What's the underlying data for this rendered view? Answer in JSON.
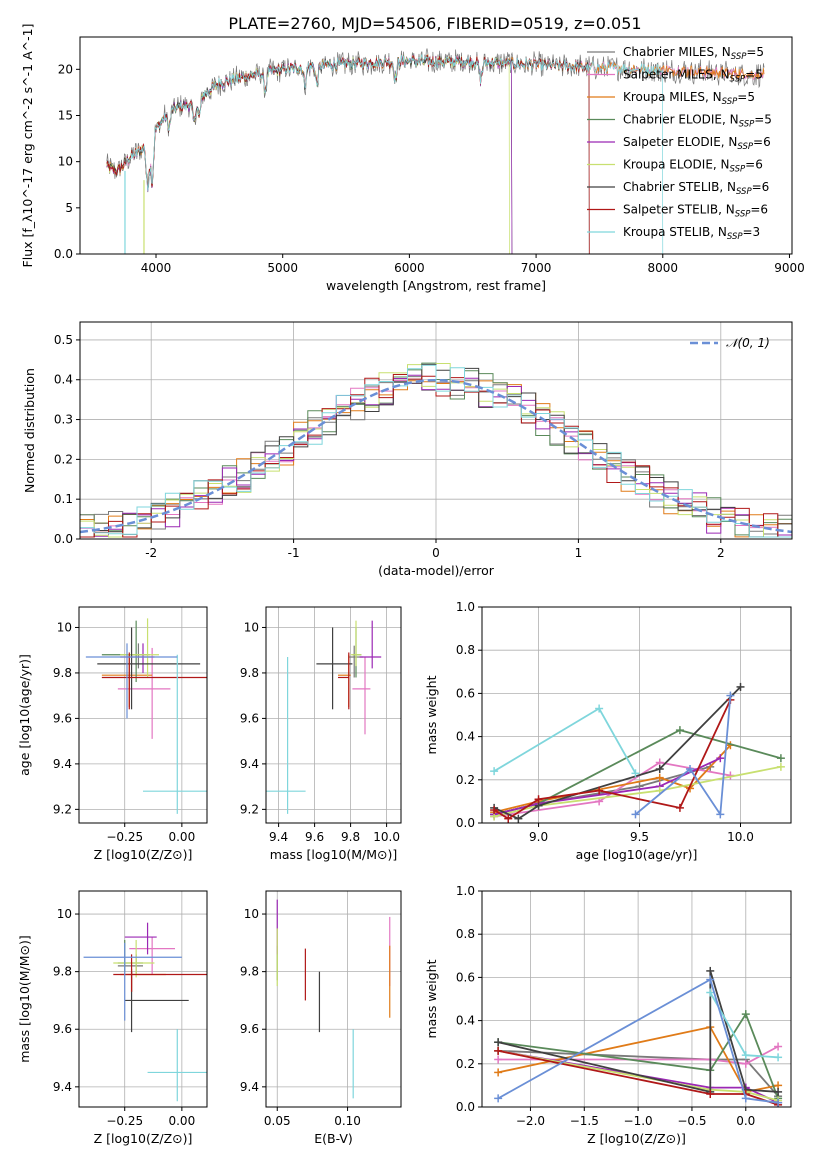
{
  "figure_title": "PLATE=2760, MJD=54506, FIBERID=0519, z=0.051",
  "colors": {
    "Chabrier MILES": "#7a7a7a",
    "Salpeter MILES": "#e377c2",
    "Kroupa MILES": "#e07b18",
    "Chabrier ELODIE": "#5a8a5a",
    "Salpeter ELODIE": "#9b28b4",
    "Kroupa ELODIE": "#c8e070",
    "Chabrier STELIB": "#404040",
    "Salpeter STELIB": "#b01818",
    "Kroupa STELIB": "#7fd6dc",
    "normal": "#6a8fd6"
  },
  "chart_data": [
    {
      "id": "spectrum",
      "type": "line",
      "xlabel": "wavelength [Angstrom, rest frame]",
      "ylabel": "Flux [f_λ10^-17 erg cm^-2 s^-1 A^-1]",
      "xlim": [
        3400,
        9020
      ],
      "ylim": [
        0,
        23.5
      ],
      "xticks": [
        4000,
        5000,
        6000,
        7000,
        8000,
        9000
      ],
      "yticks": [
        0,
        5,
        10,
        15,
        20
      ],
      "legend_position": "right",
      "legend": [
        {
          "name": "Chabrier MILES",
          "nssp": "5"
        },
        {
          "name": "Salpeter MILES",
          "nssp": "5"
        },
        {
          "name": "Kroupa MILES",
          "nssp": "5"
        },
        {
          "name": "Chabrier ELODIE",
          "nssp": "5"
        },
        {
          "name": "Salpeter ELODIE",
          "nssp": "6"
        },
        {
          "name": "Kroupa ELODIE",
          "nssp": "6"
        },
        {
          "name": "Chabrier STELIB",
          "nssp": "6"
        },
        {
          "name": "Salpeter STELIB",
          "nssp": "6"
        },
        {
          "name": "Kroupa STELIB",
          "nssp": "3"
        }
      ],
      "continuum_x": [
        3600,
        3700,
        3800,
        3900,
        4000,
        4100,
        4200,
        4300,
        4400,
        4500,
        4700,
        5000,
        5200,
        5500,
        6000,
        6500,
        7000,
        7500,
        8000,
        8500,
        8800
      ],
      "continuum_y": [
        9.5,
        9.0,
        10.5,
        11.5,
        13.5,
        15.5,
        16.0,
        16.2,
        17.5,
        18.5,
        19.2,
        20.0,
        20.3,
        20.6,
        20.9,
        20.8,
        20.5,
        20.2,
        19.9,
        19.6,
        19.4
      ],
      "cutoffs": {
        "Kroupa STELIB": [
          3760,
          8000
        ],
        "Salpeter STELIB": [
          3610,
          7420
        ],
        "Kroupa ELODIE": [
          3610,
          6790
        ],
        "Chabrier ELODIE": [
          3610,
          6810
        ],
        "Salpeter ELODIE": [
          3610,
          6810
        ],
        "Chabrier STELIB": [
          3610,
          7420
        ]
      }
    },
    {
      "id": "residuals",
      "type": "line",
      "xlabel": "(data-model)/error",
      "ylabel": "Normed distribution",
      "xlim": [
        -2.5,
        2.5
      ],
      "ylim": [
        0,
        0.545
      ],
      "xticks": [
        -2,
        -1,
        0,
        1,
        2
      ],
      "yticks": [
        0.0,
        0.1,
        0.2,
        0.3,
        0.4,
        0.5
      ],
      "legend": [
        "𝒩(0, 1)"
      ],
      "legend_position": "top-right",
      "bin_width": 0.1
    },
    {
      "id": "age_vs_Z",
      "type": "scatter",
      "xlabel": "Z [log10(Z/Z⊙)]",
      "ylabel": "age  [log10(age/yr)]",
      "xlim": [
        -0.45,
        0.11
      ],
      "ylim": [
        9.14,
        10.09
      ],
      "xticks": [
        -0.25,
        0.0
      ],
      "xticklabels": [
        "−0.25",
        "0.00"
      ],
      "yticks": [
        9.2,
        9.4,
        9.6,
        9.8,
        10.0
      ],
      "points": [
        {
          "m": "Chabrier MILES",
          "x": -0.19,
          "y": 9.88,
          "xerr": [
            0.05,
            0.05
          ],
          "yerr": [
            0.06,
            0.05
          ]
        },
        {
          "m": "Salpeter MILES",
          "x": -0.13,
          "y": 9.73,
          "xerr": [
            0.15,
            0.08
          ],
          "yerr": [
            0.22,
            0.18
          ]
        },
        {
          "m": "Kroupa MILES",
          "x": -0.23,
          "y": 9.79,
          "xerr": [
            0.12,
            0.1
          ],
          "yerr": [
            0.14,
            0.09
          ]
        },
        {
          "m": "Chabrier ELODIE",
          "x": -0.2,
          "y": 9.88,
          "xerr": [
            0.15,
            0.05
          ],
          "yerr": [
            0.12,
            0.15
          ]
        },
        {
          "m": "Salpeter ELODIE",
          "x": -0.17,
          "y": 9.87,
          "xerr": [
            0.1,
            0.05
          ],
          "yerr": [
            0.07,
            0.06
          ]
        },
        {
          "m": "Kroupa ELODIE",
          "x": -0.15,
          "y": 9.88,
          "xerr": [
            0.12,
            0.05
          ],
          "yerr": [
            0.1,
            0.16
          ]
        },
        {
          "m": "Chabrier STELIB",
          "x": -0.22,
          "y": 9.84,
          "xerr": [
            0.15,
            0.3
          ],
          "yerr": [
            0.2,
            0.16
          ]
        },
        {
          "m": "Salpeter STELIB",
          "x": -0.23,
          "y": 9.78,
          "xerr": [
            0.12,
            0.37
          ],
          "yerr": [
            0.14,
            0.11
          ]
        },
        {
          "m": "Kroupa STELIB",
          "x": -0.02,
          "y": 9.28,
          "xerr": [
            0.15,
            0.15
          ],
          "yerr": [
            0.1,
            0.6
          ]
        },
        {
          "m": "normal",
          "x": -0.24,
          "y": 9.87,
          "xerr": [
            0.18,
            0.22
          ],
          "yerr": [
            0.27,
            0.06
          ]
        }
      ]
    },
    {
      "id": "age_vs_mass",
      "type": "scatter",
      "xlabel": "mass [log10(M/M⊙)]",
      "ylabel": "",
      "xlim": [
        9.33,
        10.08
      ],
      "ylim": [
        9.14,
        10.09
      ],
      "xticks": [
        9.4,
        9.6,
        9.8,
        10.0
      ],
      "xticklabels": [
        "9.4",
        "9.6",
        "9.8",
        "10.0"
      ],
      "yticks": [
        9.2,
        9.4,
        9.6,
        9.8,
        10.0
      ],
      "points": [
        {
          "m": "Chabrier MILES",
          "x": 9.82,
          "y": 9.87,
          "xerr": [
            0.03,
            0.05
          ],
          "yerr": [
            0.09,
            0.05
          ]
        },
        {
          "m": "Salpeter MILES",
          "x": 9.88,
          "y": 9.73,
          "xerr": [
            0.07,
            0.03
          ],
          "yerr": [
            0.2,
            0.14
          ]
        },
        {
          "m": "Kroupa MILES",
          "x": 9.79,
          "y": 9.79,
          "xerr": [
            0.06,
            0.01
          ],
          "yerr": [
            0.14,
            0.09
          ]
        },
        {
          "m": "Chabrier ELODIE",
          "x": 9.83,
          "y": 9.88,
          "xerr": [
            0.02,
            0.03
          ],
          "yerr": [
            0.1,
            0.12
          ]
        },
        {
          "m": "Salpeter ELODIE",
          "x": 9.92,
          "y": 9.87,
          "xerr": [
            0.07,
            0.05
          ],
          "yerr": [
            0.05,
            0.16
          ]
        },
        {
          "m": "Kroupa ELODIE",
          "x": 9.83,
          "y": 9.88,
          "xerr": [
            0.03,
            0.03
          ],
          "yerr": [
            0.05,
            0.15
          ]
        },
        {
          "m": "Chabrier STELIB",
          "x": 9.7,
          "y": 9.84,
          "xerr": [
            0.09,
            0.11
          ],
          "yerr": [
            0.2,
            0.16
          ]
        },
        {
          "m": "Salpeter STELIB",
          "x": 9.79,
          "y": 9.78,
          "xerr": [
            0.06,
            0.0
          ],
          "yerr": [
            0.14,
            0.11
          ]
        },
        {
          "m": "Kroupa STELIB",
          "x": 9.45,
          "y": 9.28,
          "xerr": [
            0.15,
            0.1
          ],
          "yerr": [
            0.1,
            0.59
          ]
        }
      ]
    },
    {
      "id": "mass_vs_Z",
      "type": "scatter",
      "xlabel": "Z [log10(Z/Z⊙)]",
      "ylabel": "mass [log10(M/M⊙)]",
      "xlim": [
        -0.45,
        0.11
      ],
      "ylim": [
        9.33,
        10.08
      ],
      "xticks": [
        -0.25,
        0.0
      ],
      "xticklabels": [
        "−0.25",
        "0.00"
      ],
      "yticks": [
        9.4,
        9.6,
        9.8,
        10.0
      ],
      "points": [
        {
          "m": "Chabrier MILES",
          "x": -0.2,
          "y": 9.82,
          "xerr": [
            0.08,
            0.03
          ],
          "yerr": [
            0.03,
            0.04
          ]
        },
        {
          "m": "Salpeter MILES",
          "x": -0.13,
          "y": 9.88,
          "xerr": [
            0.1,
            0.1
          ],
          "yerr": [
            0.09,
            0.04
          ]
        },
        {
          "m": "Kroupa MILES",
          "x": -0.22,
          "y": 9.79,
          "xerr": [
            0.05,
            0.15
          ],
          "yerr": [
            0.06,
            0.02
          ]
        },
        {
          "m": "Chabrier ELODIE",
          "x": -0.25,
          "y": 9.83,
          "xerr": [
            0.03,
            0.08
          ],
          "yerr": [
            0.03,
            0.08
          ]
        },
        {
          "m": "Salpeter ELODIE",
          "x": -0.15,
          "y": 9.92,
          "xerr": [
            0.1,
            0.04
          ],
          "yerr": [
            0.06,
            0.05
          ]
        },
        {
          "m": "Kroupa ELODIE",
          "x": -0.2,
          "y": 9.83,
          "xerr": [
            0.1,
            0.08
          ],
          "yerr": [
            0.05,
            0.08
          ]
        },
        {
          "m": "Chabrier STELIB",
          "x": -0.22,
          "y": 9.7,
          "xerr": [
            0.03,
            0.25
          ],
          "yerr": [
            0.11,
            0.1
          ]
        },
        {
          "m": "Salpeter STELIB",
          "x": -0.22,
          "y": 9.79,
          "xerr": [
            0.08,
            0.33
          ],
          "yerr": [
            0.06,
            0.07
          ]
        },
        {
          "m": "Kroupa STELIB",
          "x": -0.02,
          "y": 9.45,
          "xerr": [
            0.13,
            0.15
          ],
          "yerr": [
            0.1,
            0.15
          ]
        },
        {
          "m": "normal",
          "x": -0.25,
          "y": 9.85,
          "xerr": [
            0.18,
            0.25
          ],
          "yerr": [
            0.22,
            0.05
          ]
        }
      ]
    },
    {
      "id": "mass_vs_ebv",
      "type": "scatter",
      "xlabel": "E(B-V)",
      "ylabel": "",
      "xlim": [
        0.042,
        0.138
      ],
      "ylim": [
        9.33,
        10.08
      ],
      "xticks": [
        0.05,
        0.1
      ],
      "xticklabels": [
        "0.05",
        "0.10"
      ],
      "yticks": [
        9.4,
        9.6,
        9.8,
        10.0
      ],
      "points": [
        {
          "m": "Salpeter MILES",
          "x": 0.13,
          "y": 9.88,
          "xerr": [
            0,
            0
          ],
          "yerr": [
            0.13,
            0.11
          ]
        },
        {
          "m": "Kroupa MILES",
          "x": 0.13,
          "y": 9.79,
          "xerr": [
            0,
            0
          ],
          "yerr": [
            0.15,
            0.1
          ]
        },
        {
          "m": "Chabrier ELODIE",
          "x": 0.05,
          "y": 9.83,
          "xerr": [
            0,
            0
          ],
          "yerr": [
            0.06,
            0.06
          ]
        },
        {
          "m": "Salpeter ELODIE",
          "x": 0.05,
          "y": 9.96,
          "xerr": [
            0,
            0
          ],
          "yerr": [
            0.1,
            0.09
          ]
        },
        {
          "m": "Kroupa ELODIE",
          "x": 0.05,
          "y": 9.85,
          "xerr": [
            0,
            0
          ],
          "yerr": [
            0.1,
            0.1
          ]
        },
        {
          "m": "Chabrier STELIB",
          "x": 0.08,
          "y": 9.7,
          "xerr": [
            0,
            0
          ],
          "yerr": [
            0.11,
            0.1
          ]
        },
        {
          "m": "Salpeter STELIB",
          "x": 0.07,
          "y": 9.79,
          "xerr": [
            0,
            0
          ],
          "yerr": [
            0.09,
            0.09
          ]
        },
        {
          "m": "Kroupa STELIB",
          "x": 0.104,
          "y": 9.45,
          "xerr": [
            0,
            0
          ],
          "yerr": [
            0.09,
            0.15
          ]
        }
      ]
    },
    {
      "id": "weight_vs_age",
      "type": "line",
      "xlabel": "age  [log10(age/yr)]",
      "ylabel": "mass weight",
      "xlim": [
        8.72,
        10.25
      ],
      "ylim": [
        0,
        1.0
      ],
      "xticks": [
        9.0,
        9.5,
        10.0
      ],
      "xticklabels": [
        "9.0",
        "9.5",
        "10.0"
      ],
      "yticks": [
        0.0,
        0.2,
        0.4,
        0.6,
        0.8,
        1.0
      ],
      "series": [
        {
          "m": "Chabrier MILES",
          "x": [
            8.78,
            9.0,
            9.5,
            9.85
          ],
          "y": [
            0.04,
            0.09,
            0.17,
            0.26
          ]
        },
        {
          "m": "Salpeter MILES",
          "x": [
            8.78,
            9.3,
            9.6,
            9.95
          ],
          "y": [
            0.03,
            0.1,
            0.28,
            0.22
          ]
        },
        {
          "m": "Kroupa MILES",
          "x": [
            8.78,
            9.0,
            9.6,
            9.75,
            9.95
          ],
          "y": [
            0.05,
            0.1,
            0.21,
            0.16,
            0.36
          ]
        },
        {
          "m": "Chabrier ELODIE",
          "x": [
            8.78,
            9.0,
            9.7,
            10.2
          ],
          "y": [
            0.04,
            0.09,
            0.43,
            0.3
          ]
        },
        {
          "m": "Salpeter ELODIE",
          "x": [
            8.78,
            9.0,
            9.6,
            9.9
          ],
          "y": [
            0.04,
            0.09,
            0.17,
            0.3
          ]
        },
        {
          "m": "Kroupa ELODIE",
          "x": [
            8.78,
            9.0,
            9.6,
            10.2
          ],
          "y": [
            0.03,
            0.08,
            0.15,
            0.26
          ]
        },
        {
          "m": "Chabrier STELIB",
          "x": [
            8.78,
            8.9,
            9.0,
            9.6,
            10.0
          ],
          "y": [
            0.07,
            0.02,
            0.08,
            0.25,
            0.63
          ]
        },
        {
          "m": "Salpeter STELIB",
          "x": [
            8.78,
            8.85,
            9.0,
            9.3,
            9.7,
            9.95
          ],
          "y": [
            0.06,
            0.02,
            0.11,
            0.15,
            0.07,
            0.57
          ]
        },
        {
          "m": "Kroupa STELIB",
          "x": [
            8.78,
            9.3,
            9.48
          ],
          "y": [
            0.24,
            0.53,
            0.23
          ]
        },
        {
          "m": "normal",
          "x": [
            9.48,
            9.75,
            9.9,
            9.95
          ],
          "y": [
            0.04,
            0.25,
            0.04,
            0.59
          ]
        }
      ]
    },
    {
      "id": "weight_vs_Z",
      "type": "line",
      "xlabel": "Z [log10(Z/Z⊙)]",
      "ylabel": "mass weight",
      "xlim": [
        -2.45,
        0.42
      ],
      "ylim": [
        0,
        1.0
      ],
      "xticks": [
        -2.0,
        -1.5,
        -1.0,
        -0.5,
        0.0
      ],
      "xticklabels": [
        "−2.0",
        "−1.5",
        "−1.0",
        "−0.5",
        "0.0"
      ],
      "yticks": [
        0.0,
        0.2,
        0.4,
        0.6,
        0.8,
        1.0
      ],
      "series": [
        {
          "m": "Chabrier MILES",
          "x": [
            -2.3,
            -0.33,
            0.0,
            0.3
          ],
          "y": [
            0.26,
            0.22,
            0.22,
            0.05
          ]
        },
        {
          "m": "Salpeter MILES",
          "x": [
            -2.3,
            -0.33,
            0.0,
            0.3
          ],
          "y": [
            0.22,
            0.22,
            0.2,
            0.28
          ]
        },
        {
          "m": "Kroupa MILES",
          "x": [
            -2.3,
            -0.33,
            0.0,
            0.3
          ],
          "y": [
            0.16,
            0.37,
            0.07,
            0.1
          ]
        },
        {
          "m": "Chabrier ELODIE",
          "x": [
            -2.3,
            -0.33,
            0.0,
            0.3
          ],
          "y": [
            0.3,
            0.17,
            0.43,
            0.04
          ]
        },
        {
          "m": "Salpeter ELODIE",
          "x": [
            -2.3,
            -0.33,
            0.0,
            0.3
          ],
          "y": [
            0.26,
            0.09,
            0.09,
            0.02
          ]
        },
        {
          "m": "Kroupa ELODIE",
          "x": [
            -2.3,
            -0.33,
            0.0,
            0.3
          ],
          "y": [
            0.26,
            0.08,
            0.07,
            0.03
          ]
        },
        {
          "m": "Chabrier STELIB",
          "x": [
            -2.3,
            -0.33,
            -0.33,
            0.0,
            0.3
          ],
          "y": [
            0.3,
            0.07,
            0.63,
            0.08,
            0.07
          ]
        },
        {
          "m": "Salpeter STELIB",
          "x": [
            -2.3,
            -0.33,
            0.0,
            0.3
          ],
          "y": [
            0.26,
            0.06,
            0.06,
            0.01
          ]
        },
        {
          "m": "Kroupa STELIB",
          "x": [
            -0.33,
            0.0,
            0.3
          ],
          "y": [
            0.53,
            0.24,
            0.23
          ]
        },
        {
          "m": "normal",
          "x": [
            -2.3,
            -0.33,
            0.0,
            0.3
          ],
          "y": [
            0.04,
            0.59,
            0.04,
            0.02
          ]
        }
      ]
    }
  ]
}
